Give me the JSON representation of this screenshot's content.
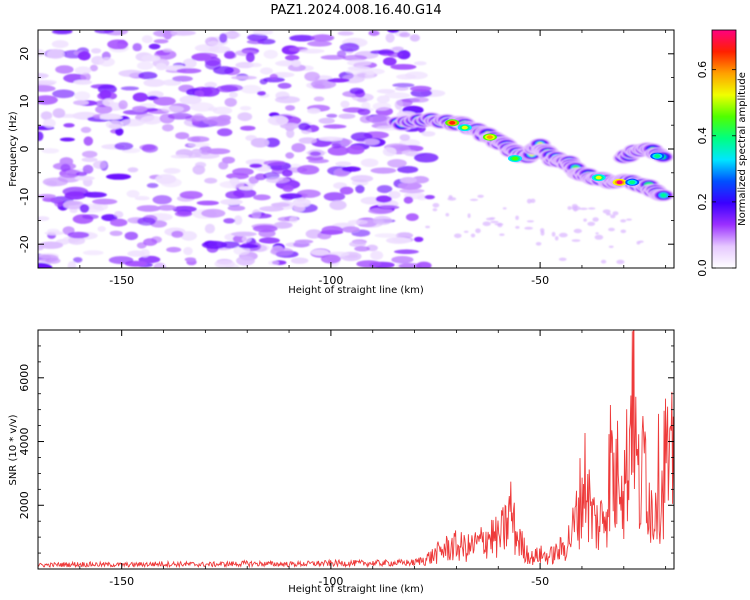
{
  "title": "PAZ1.2024.008.16.40.G14",
  "chart_data": [
    {
      "type": "heatmap",
      "xlabel": "Height of straight line (km)",
      "ylabel": "Frequency (Hz)",
      "xlim": [
        -170,
        -18
      ],
      "ylim": [
        -25,
        25
      ],
      "xticks": [
        -150,
        -100,
        -50
      ],
      "yticks": [
        -20,
        -10,
        0,
        10,
        20
      ],
      "colorbar": {
        "label": "Normalized spectral amplitude",
        "range": [
          0,
          0.72
        ],
        "ticks": [
          0.0,
          0.2,
          0.4,
          0.6
        ],
        "colormap": "gist_rainbow_r (white below threshold)",
        "stops": [
          "#ffffff",
          "#e6c8ff",
          "#9b30ff",
          "#3a00ff",
          "#0050ff",
          "#00e6ff",
          "#00ff80",
          "#50ff00",
          "#f0ff00",
          "#ffa000",
          "#ff2000",
          "#ff0080"
        ]
      },
      "features": {
        "noise_region_x": [
          -170,
          -78
        ],
        "signal_band": [
          {
            "x": -84,
            "y": 5.5
          },
          {
            "x": -76,
            "y": 6.0
          },
          {
            "x": -70,
            "y": 5.5
          },
          {
            "x": -66,
            "y": 4.5
          },
          {
            "x": -62,
            "y": 2.5
          },
          {
            "x": -58,
            "y": 0.5
          },
          {
            "x": -54,
            "y": -2.0
          },
          {
            "x": -50,
            "y": 0.5
          },
          {
            "x": -47,
            "y": -2.0
          },
          {
            "x": -43,
            "y": -3.0
          },
          {
            "x": -40,
            "y": -5.5
          },
          {
            "x": -36,
            "y": -6.0
          },
          {
            "x": -32,
            "y": -7.0
          },
          {
            "x": -28,
            "y": -7.0
          },
          {
            "x": -24,
            "y": -8.0
          },
          {
            "x": -20,
            "y": -10.0
          }
        ],
        "signal_branch": [
          {
            "x": -30,
            "y": -1.5
          },
          {
            "x": -25,
            "y": 0.0
          },
          {
            "x": -20,
            "y": -1.5
          }
        ],
        "peak": {
          "x": -31,
          "y": -7.0,
          "value": 0.72
        }
      }
    },
    {
      "type": "line",
      "xlabel": "Height of straight line (km)",
      "ylabel": "SNR (10 * v/v)",
      "xlim": [
        -170,
        -18
      ],
      "ylim": [
        0,
        7500
      ],
      "xticks": [
        -150,
        -100,
        -50
      ],
      "yticks": [
        2000,
        4000,
        6000
      ],
      "color": "#ee3a3a",
      "series": [
        {
          "x": [
            -170,
            -160,
            -150,
            -140,
            -130,
            -120,
            -110,
            -100,
            -90,
            -80,
            -76,
            -73,
            -70,
            -67,
            -64,
            -62,
            -60,
            -58,
            -57,
            -56,
            -54,
            -52,
            -50,
            -48,
            -46,
            -44,
            -42,
            -40,
            -39,
            -38,
            -36,
            -34,
            -33,
            -32,
            -31,
            -30,
            -28.5,
            -28,
            -27,
            -26,
            -25,
            -24,
            -23,
            -22,
            -21,
            -20,
            -19,
            -18
          ],
          "values": [
            120,
            150,
            130,
            160,
            140,
            170,
            150,
            180,
            180,
            200,
            380,
            620,
            720,
            650,
            850,
            1050,
            950,
            1350,
            1900,
            1150,
            650,
            350,
            450,
            380,
            520,
            700,
            1250,
            2400,
            2900,
            1800,
            1300,
            2100,
            3700,
            2200,
            4300,
            2500,
            4100,
            7500,
            3300,
            2200,
            3700,
            2500,
            1500,
            3100,
            2300,
            3800,
            2600,
            4000
          ]
        }
      ]
    }
  ]
}
